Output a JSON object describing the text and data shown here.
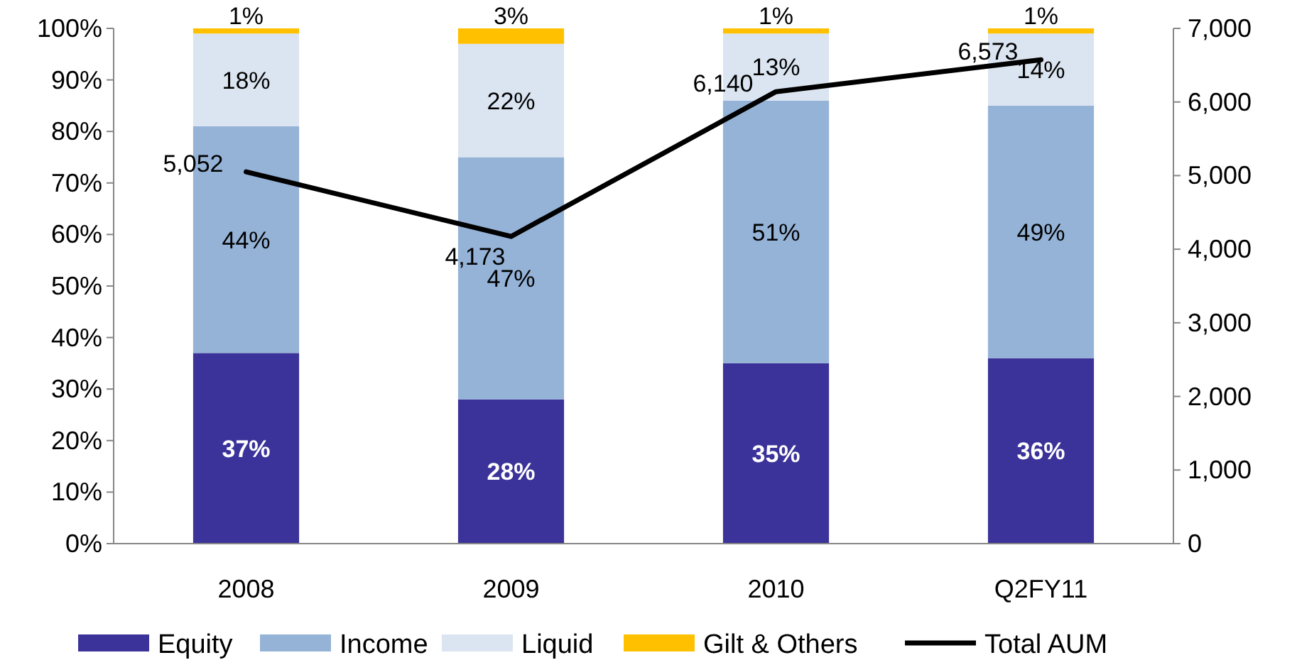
{
  "chart_data": {
    "type": "bar",
    "stacked": true,
    "categories": [
      "2008",
      "2009",
      "2010",
      "Q2FY11"
    ],
    "series": [
      {
        "name": "Equity",
        "color": "#3b3399",
        "values": [
          37,
          28,
          35,
          36
        ],
        "value_labels": [
          "37%",
          "28%",
          "35%",
          "36%"
        ]
      },
      {
        "name": "Income",
        "color": "#95b3d7",
        "values": [
          44,
          47,
          51,
          49
        ],
        "value_labels": [
          "44%",
          "47%",
          "51%",
          "49%"
        ]
      },
      {
        "name": "Liquid",
        "color": "#dbe5f1",
        "values": [
          18,
          22,
          13,
          14
        ],
        "value_labels": [
          "18%",
          "22%",
          "13%",
          "14%"
        ]
      },
      {
        "name": "Gilt & Others",
        "color": "#ffc000",
        "values": [
          1,
          3,
          1,
          1
        ],
        "value_labels": [
          "1%",
          "3%",
          "1%",
          "1%"
        ]
      },
      {
        "name": "Total AUM",
        "type": "line",
        "axis": "y2",
        "color": "#000000",
        "values": [
          5052,
          4173,
          6140,
          6573
        ],
        "value_labels": [
          "5,052",
          "4,173",
          "6,140",
          "6,573"
        ]
      }
    ],
    "ylim": [
      0,
      100
    ],
    "yticks": [
      {
        "value": 0,
        "label": "0%"
      },
      {
        "value": 10,
        "label": "10%"
      },
      {
        "value": 20,
        "label": "20%"
      },
      {
        "value": 30,
        "label": "30%"
      },
      {
        "value": 40,
        "label": "40%"
      },
      {
        "value": 50,
        "label": "50%"
      },
      {
        "value": 60,
        "label": "60%"
      },
      {
        "value": 70,
        "label": "70%"
      },
      {
        "value": 80,
        "label": "80%"
      },
      {
        "value": 90,
        "label": "90%"
      },
      {
        "value": 100,
        "label": "100%"
      }
    ],
    "y2lim": [
      0,
      7000
    ],
    "y2ticks": [
      0,
      {
        "value": 1000,
        "label": "1,000"
      },
      {
        "value": 2000,
        "label": "2,000"
      },
      {
        "value": 3000,
        "label": "3,000"
      },
      {
        "value": 4000,
        "label": "4,000"
      },
      {
        "value": 5000,
        "label": "5,000"
      },
      {
        "value": 6000,
        "label": "6,000"
      },
      {
        "value": 7000,
        "label": "7,000"
      }
    ],
    "legend": "bottom",
    "marker": "none",
    "line_style": "solid"
  }
}
